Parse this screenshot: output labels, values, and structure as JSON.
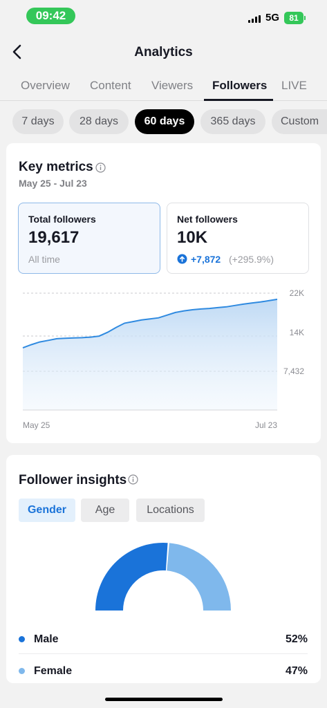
{
  "status_bar": {
    "time": "09:42",
    "network": "5G",
    "battery": "81"
  },
  "nav": {
    "title": "Analytics"
  },
  "tabs": [
    "Overview",
    "Content",
    "Viewers",
    "Followers",
    "LIVE"
  ],
  "active_tab": "Followers",
  "ranges": [
    "7 days",
    "28 days",
    "60 days",
    "365 days",
    "Custom"
  ],
  "active_range": "60 days",
  "key_metrics": {
    "title": "Key metrics",
    "date_range": "May 25 - Jul 23",
    "total": {
      "label": "Total followers",
      "value": "19,617",
      "sub": "All time"
    },
    "net": {
      "label": "Net followers",
      "value": "10K",
      "delta": "+7,872",
      "delta_pct": "(+295.9%)"
    }
  },
  "chart_data": {
    "type": "area",
    "title": "",
    "xlabel": "",
    "ylabel": "",
    "x_tick_labels": [
      "May 25",
      "Jul 23"
    ],
    "y_tick_labels": [
      "22K",
      "14K",
      "7,432"
    ],
    "y_ticks": [
      22000,
      14000,
      7432
    ],
    "ylim": [
      0,
      22000
    ],
    "grid": true,
    "series": [
      {
        "values": [
          11800,
          12400,
          12900,
          13200,
          13500,
          13600,
          13650,
          13700,
          13800,
          14000,
          14700,
          15600,
          16400,
          16700,
          17000,
          17200,
          17400,
          17900,
          18400,
          18700,
          18900,
          19050,
          19150,
          19300,
          19450,
          19700,
          19950,
          20150,
          20350,
          20600,
          20850
        ]
      }
    ],
    "colors": {
      "line": "#2f8ae0",
      "fill": "#cfe3f7"
    }
  },
  "insights": {
    "title": "Follower insights",
    "segments": [
      "Gender",
      "Age",
      "Locations"
    ],
    "active_segment": "Gender",
    "gender": [
      {
        "label": "Male",
        "value": "52%",
        "pct": 52,
        "color": "#1a73d9"
      },
      {
        "label": "Female",
        "value": "47%",
        "pct": 47,
        "color": "#7fb8ec"
      }
    ]
  }
}
